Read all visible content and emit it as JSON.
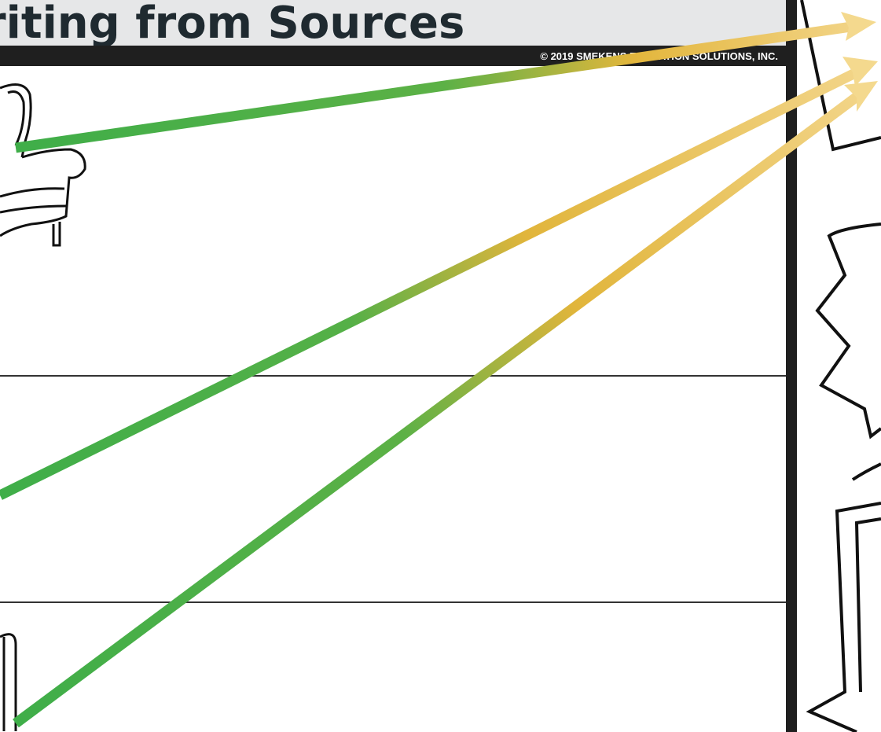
{
  "header": {
    "title": "riting from Sources",
    "copyright": "© 2019 SMEKENS EDUCATION SOLUTIONS, INC."
  }
}
